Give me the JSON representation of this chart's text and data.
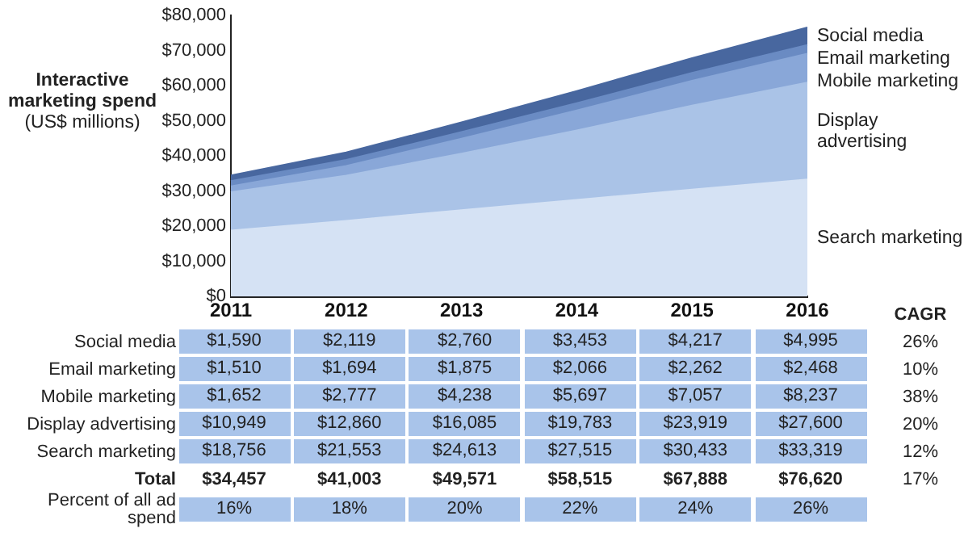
{
  "chart_data": {
    "type": "area",
    "stacked": true,
    "ylabel": "Interactive marketing spend (US$ millions)",
    "categories": [
      "2011",
      "2012",
      "2013",
      "2014",
      "2015",
      "2016"
    ],
    "ylim": [
      0,
      80000
    ],
    "yticks": [
      {
        "value": 0,
        "label": "$0"
      },
      {
        "value": 10000,
        "label": "$10,000"
      },
      {
        "value": 20000,
        "label": "$20,000"
      },
      {
        "value": 30000,
        "label": "$30,000"
      },
      {
        "value": 40000,
        "label": "$40,000"
      },
      {
        "value": 50000,
        "label": "$50,000"
      },
      {
        "value": 60000,
        "label": "$60,000"
      },
      {
        "value": 70000,
        "label": "$70,000"
      },
      {
        "value": 80000,
        "label": "$80,000"
      }
    ],
    "series": [
      {
        "name": "Search marketing",
        "color": "#d5e2f4",
        "values": [
          18756,
          21553,
          24613,
          27515,
          30433,
          33319
        ],
        "value_labels": [
          "$18,756",
          "$21,553",
          "$24,613",
          "$27,515",
          "$30,433",
          "$33,319"
        ]
      },
      {
        "name": "Display advertising",
        "color": "#aac3e7",
        "values": [
          10949,
          12860,
          16085,
          19783,
          23919,
          27600
        ],
        "value_labels": [
          "$10,949",
          "$12,860",
          "$16,085",
          "$19,783",
          "$23,919",
          "$27,600"
        ]
      },
      {
        "name": "Mobile marketing",
        "color": "#89a7d8",
        "values": [
          1652,
          2777,
          4238,
          5697,
          7057,
          8237
        ],
        "value_labels": [
          "$1,652",
          "$2,777",
          "$4,238",
          "$5,697",
          "$7,057",
          "$8,237"
        ]
      },
      {
        "name": "Email marketing",
        "color": "#6a8bc3",
        "values": [
          1510,
          1694,
          1875,
          2066,
          2262,
          2468
        ],
        "value_labels": [
          "$1,510",
          "$1,694",
          "$1,875",
          "$2,066",
          "$2,262",
          "$2,468"
        ]
      },
      {
        "name": "Social media",
        "color": "#48679f",
        "values": [
          1590,
          2119,
          2760,
          3453,
          4217,
          4995
        ],
        "value_labels": [
          "$1,590",
          "$2,119",
          "$2,760",
          "$3,453",
          "$4,217",
          "$4,995"
        ]
      }
    ],
    "annotations": [
      "CAGR",
      "26%",
      "10%",
      "38%",
      "20%",
      "12%",
      "Total",
      "$34,457",
      "$41,003",
      "$49,571",
      "$58,515",
      "$67,888",
      "$76,620",
      "17%",
      "Percent of all ad spend",
      "16%",
      "18%",
      "20%",
      "22%",
      "24%",
      "26%"
    ]
  }
}
